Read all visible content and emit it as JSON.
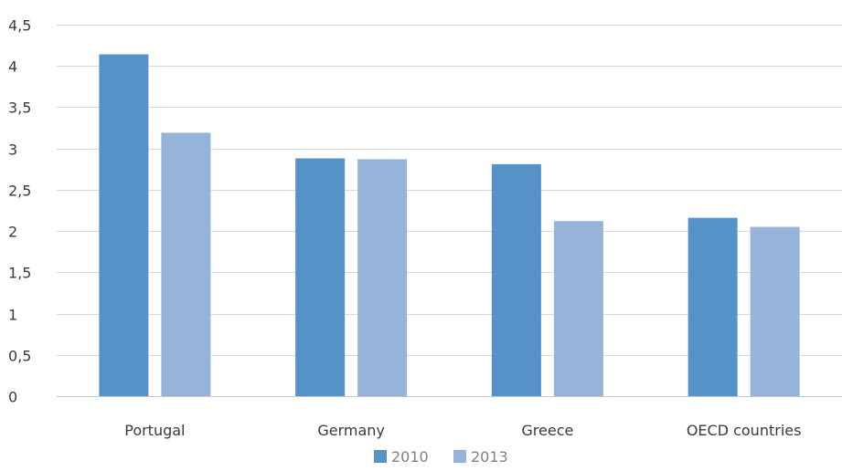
{
  "chart_data": {
    "type": "bar",
    "title": "",
    "xlabel": "",
    "ylabel": "",
    "categories": [
      "Portugal",
      "Germany",
      "Greece",
      "OECD countries"
    ],
    "series": [
      {
        "name": "2010",
        "color": "#5592c8",
        "values": [
          4.14,
          2.88,
          2.81,
          2.16
        ]
      },
      {
        "name": "2013",
        "color": "#96b4d9",
        "values": [
          3.19,
          2.87,
          2.12,
          2.05
        ]
      }
    ],
    "ylim": [
      0,
      4.5
    ],
    "y_ticks": [
      0,
      0.5,
      1,
      1.5,
      2,
      2.5,
      3,
      3.5,
      4,
      4.5
    ],
    "y_tick_labels": [
      "0",
      "0,5",
      "1",
      "1,5",
      "2",
      "2,5",
      "3",
      "3,5",
      "4",
      "4,5"
    ],
    "grid": true,
    "legend_position": "bottom"
  }
}
